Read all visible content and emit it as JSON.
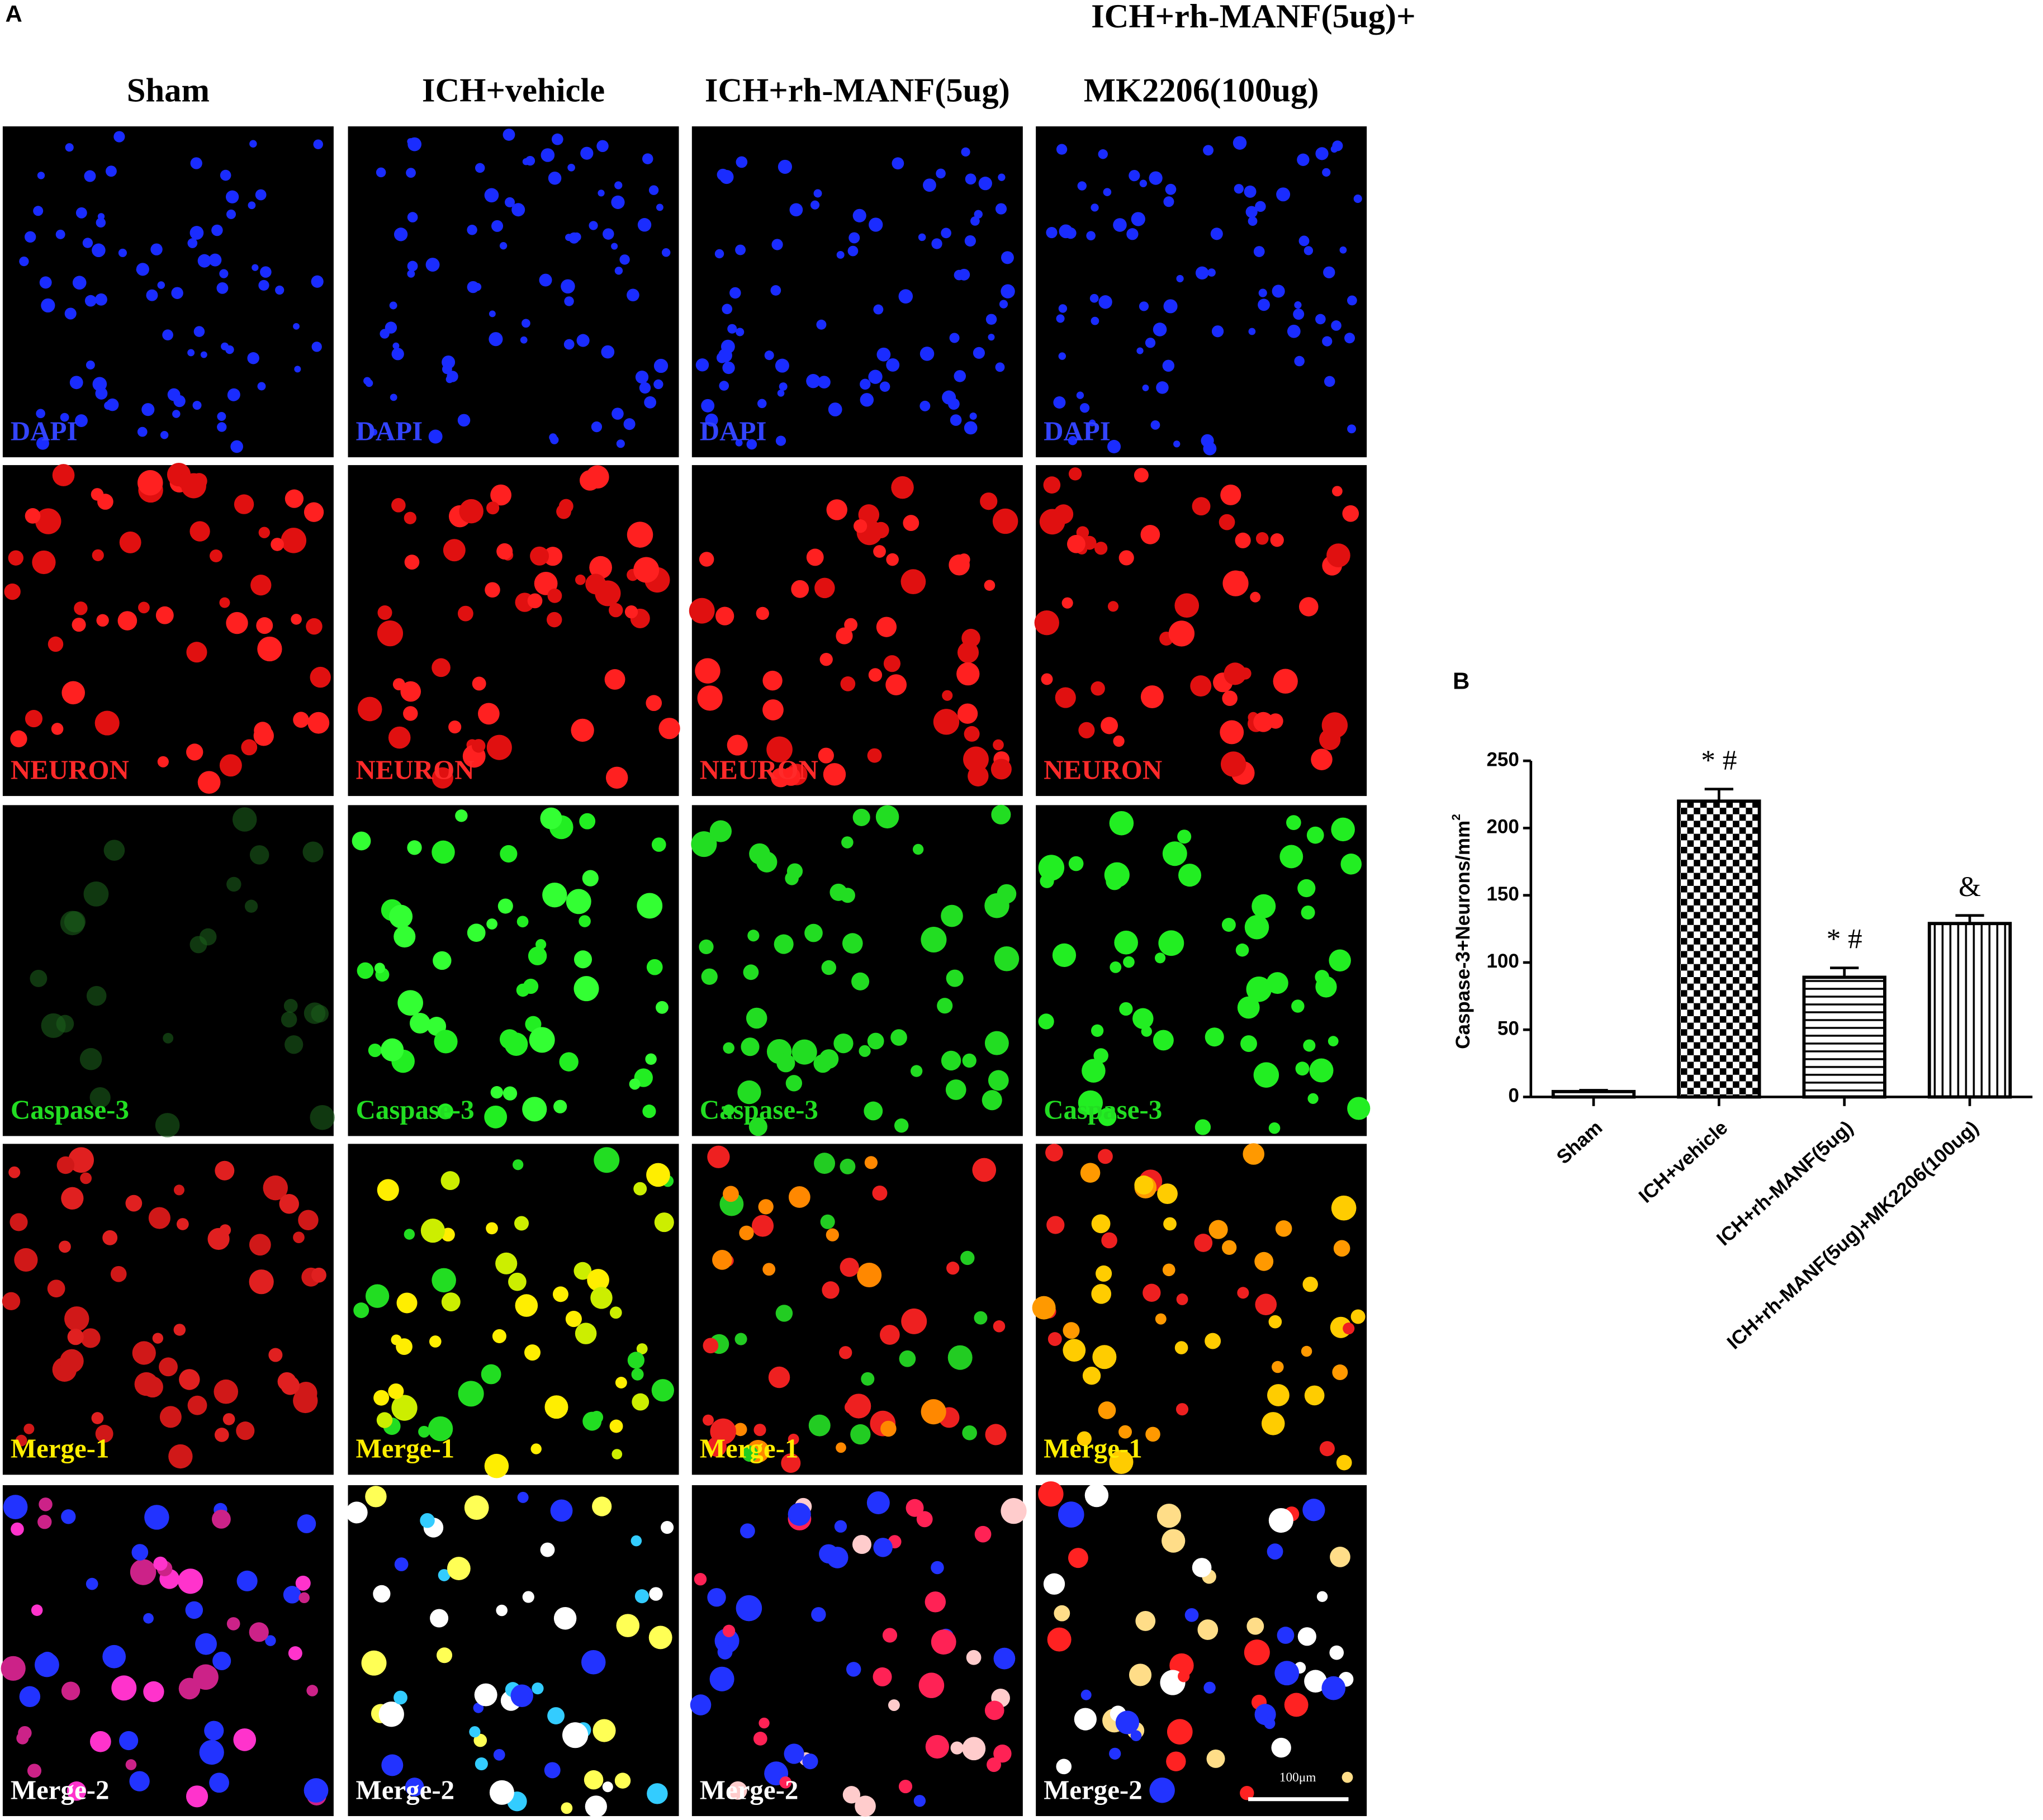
{
  "panel_a": {
    "label": "A",
    "columns": [
      [
        "Sham"
      ],
      [
        "ICH+vehicle"
      ],
      [
        "ICH+rh-MANF(5ug)"
      ],
      [
        "ICH+rh-MANF(5ug)+",
        "MK2206(100ug)"
      ]
    ],
    "rows": [
      "DAPI",
      "NEURON",
      "Caspase-3",
      "Merge-1",
      "Merge-2"
    ],
    "scale_bar": "100μm"
  },
  "chart_data": {
    "type": "bar",
    "label": "B",
    "y_label": {
      "text": "Caspase-3+Neurons/mm",
      "superscript": "2"
    },
    "categories": [
      "Sham",
      "ICH+vehicle",
      "ICH+rh-MANF(5ug)",
      "ICH+rh-MANF(5ug)+MK2206(100ug)"
    ],
    "values": [
      4,
      220,
      89,
      129
    ],
    "errors": [
      1,
      9,
      7,
      6
    ],
    "annotations": [
      null,
      "* #",
      "* #",
      "&"
    ],
    "patterns": [
      "none",
      "checker",
      "horizontal",
      "vertical"
    ],
    "color": "#000000",
    "ylim": [
      0,
      250
    ],
    "yticks": [
      0,
      50,
      100,
      150,
      200,
      250
    ]
  }
}
